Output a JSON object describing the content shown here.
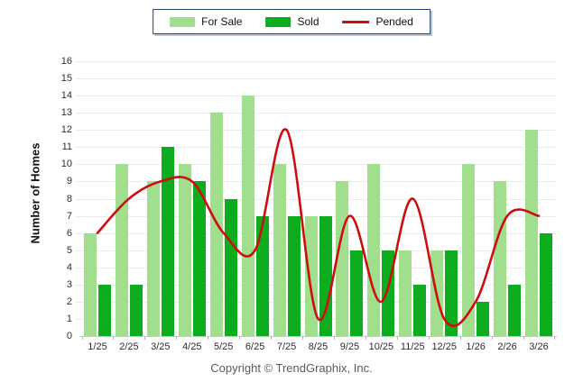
{
  "y_axis": {
    "title": "Number of Homes",
    "min": 0,
    "max": 16,
    "step": 1
  },
  "footer": {
    "copyright": "Copyright © TrendGraphix, Inc."
  },
  "colors": {
    "for_sale": "#A1DE8E",
    "sold": "#0DAC1F",
    "pended": "#CC0E0E",
    "gridline": "#ebebeb",
    "axis": "#c8c8c8"
  },
  "chart_data": {
    "type": "bar",
    "title": "",
    "xlabel": "",
    "ylabel": "Number of Homes",
    "ylim": [
      0,
      16
    ],
    "grid": true,
    "legend_position": "top",
    "categories": [
      "1/25",
      "2/25",
      "3/25",
      "4/25",
      "5/25",
      "6/25",
      "7/25",
      "8/25",
      "9/25",
      "10/25",
      "11/25",
      "12/25",
      "1/26",
      "2/26",
      "3/26"
    ],
    "series": [
      {
        "name": "For Sale",
        "type": "bar",
        "color": "#A1DE8E",
        "values": [
          6,
          10,
          9,
          10,
          13,
          14,
          10,
          7,
          9,
          10,
          5,
          5,
          10,
          9,
          12
        ]
      },
      {
        "name": "Sold",
        "type": "bar",
        "color": "#0DAC1F",
        "values": [
          3,
          3,
          11,
          9,
          8,
          7,
          7,
          7,
          5,
          5,
          3,
          5,
          2,
          3,
          6
        ]
      },
      {
        "name": "Pended",
        "type": "line",
        "color": "#CC0E0E",
        "values": [
          6,
          8,
          9,
          9,
          6,
          5,
          12,
          1,
          7,
          2,
          8,
          1,
          2,
          7,
          7
        ]
      }
    ]
  }
}
